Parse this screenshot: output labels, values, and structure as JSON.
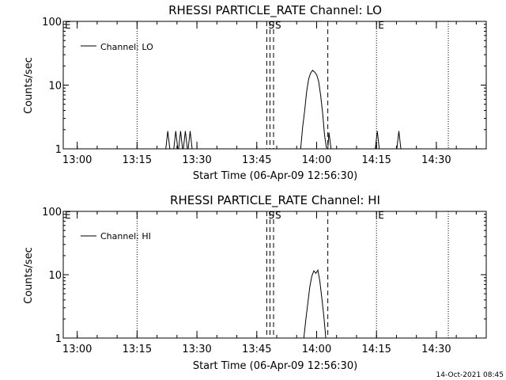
{
  "footer": {
    "timestamp": "14-Oct-2021 08:45"
  },
  "chart_data": [
    {
      "type": "line",
      "title": "RHESSI PARTICLE_RATE Channel: LO",
      "xlabel": "Start Time (06-Apr-09 12:56:30)",
      "ylabel": "Counts/sec",
      "yscale": "log",
      "xlim_minutes": [
        56.5,
        162.5
      ],
      "ylim": [
        1,
        100
      ],
      "x_ticks": [
        {
          "minute": 60,
          "label": "13:00"
        },
        {
          "minute": 75,
          "label": "13:15"
        },
        {
          "minute": 90,
          "label": "13:30"
        },
        {
          "minute": 105,
          "label": "13:45"
        },
        {
          "minute": 120,
          "label": "14:00"
        },
        {
          "minute": 135,
          "label": "14:15"
        },
        {
          "minute": 150,
          "label": "14:30"
        }
      ],
      "y_ticks": [
        {
          "value": 1,
          "label": "1"
        },
        {
          "value": 10,
          "label": "10"
        },
        {
          "value": 100,
          "label": "100"
        }
      ],
      "legend": {
        "label": "Channel: LO",
        "position": "top-left"
      },
      "markers": [
        {
          "minute": 56.5,
          "style": "dotted",
          "label": "E"
        },
        {
          "minute": 75,
          "style": "dotted",
          "label": ""
        },
        {
          "minute": 107.5,
          "style": "dashed",
          "label": "S"
        },
        {
          "minute": 108.3,
          "style": "dashed",
          "label": ""
        },
        {
          "minute": 109.2,
          "style": "dashed",
          "label": "S"
        },
        {
          "minute": 122.8,
          "style": "dashed",
          "label": ""
        },
        {
          "minute": 135,
          "style": "dotted",
          "label": "E"
        },
        {
          "minute": 153,
          "style": "dotted",
          "label": ""
        }
      ],
      "series": [
        {
          "x": [
            56.5,
            82.2,
            82.7,
            83.2,
            84.2,
            84.7,
            85.2,
            85.4,
            85.9,
            86.4,
            86.6,
            87.1,
            87.6,
            87.8,
            88.3,
            88.8,
            116.0,
            116.5,
            117.0,
            117.5,
            118.0,
            118.5,
            119.0,
            119.5,
            120.0,
            120.5,
            121.0,
            121.5,
            122.0,
            122.5,
            122.8,
            123.1,
            123.6,
            124.1,
            134.7,
            135.2,
            135.7,
            140.1,
            140.6,
            141.1,
            162.5
          ],
          "y": [
            1,
            1,
            1.9,
            1,
            1,
            1.9,
            1,
            1,
            1.9,
            1,
            1,
            1.9,
            1,
            1,
            1.9,
            1,
            1,
            2.2,
            4.0,
            8.0,
            12.5,
            15.5,
            17.0,
            16.0,
            14.5,
            11.5,
            7.0,
            3.6,
            1.6,
            1,
            1,
            1.8,
            1,
            1,
            1,
            1.9,
            1,
            1,
            1.9,
            1,
            1
          ]
        }
      ]
    },
    {
      "type": "line",
      "title": "RHESSI PARTICLE_RATE Channel: HI",
      "xlabel": "Start Time (06-Apr-09 12:56:30)",
      "ylabel": "Counts/sec",
      "yscale": "log",
      "xlim_minutes": [
        56.5,
        162.5
      ],
      "ylim": [
        1,
        100
      ],
      "x_ticks": [
        {
          "minute": 60,
          "label": "13:00"
        },
        {
          "minute": 75,
          "label": "13:15"
        },
        {
          "minute": 90,
          "label": "13:30"
        },
        {
          "minute": 105,
          "label": "13:45"
        },
        {
          "minute": 120,
          "label": "14:00"
        },
        {
          "minute": 135,
          "label": "14:15"
        },
        {
          "minute": 150,
          "label": "14:30"
        }
      ],
      "y_ticks": [
        {
          "value": 1,
          "label": "1"
        },
        {
          "value": 10,
          "label": "10"
        },
        {
          "value": 100,
          "label": "100"
        }
      ],
      "legend": {
        "label": "Channel: HI",
        "position": "top-left"
      },
      "markers": [
        {
          "minute": 56.5,
          "style": "dotted",
          "label": "E"
        },
        {
          "minute": 75,
          "style": "dotted",
          "label": ""
        },
        {
          "minute": 107.5,
          "style": "dashed",
          "label": "S"
        },
        {
          "minute": 108.3,
          "style": "dashed",
          "label": ""
        },
        {
          "minute": 109.2,
          "style": "dashed",
          "label": "S"
        },
        {
          "minute": 122.8,
          "style": "dashed",
          "label": ""
        },
        {
          "minute": 135,
          "style": "dotted",
          "label": "E"
        },
        {
          "minute": 153,
          "style": "dotted",
          "label": ""
        }
      ],
      "series": [
        {
          "x": [
            56.5,
            116.8,
            117.3,
            117.8,
            118.3,
            118.8,
            119.3,
            119.8,
            120.3,
            120.8,
            121.3,
            121.8,
            122.3,
            162.5
          ],
          "y": [
            1,
            1,
            2.0,
            3.6,
            6.5,
            9.5,
            11.5,
            10.5,
            11.8,
            8.0,
            4.2,
            2.2,
            1,
            1
          ]
        }
      ]
    }
  ]
}
